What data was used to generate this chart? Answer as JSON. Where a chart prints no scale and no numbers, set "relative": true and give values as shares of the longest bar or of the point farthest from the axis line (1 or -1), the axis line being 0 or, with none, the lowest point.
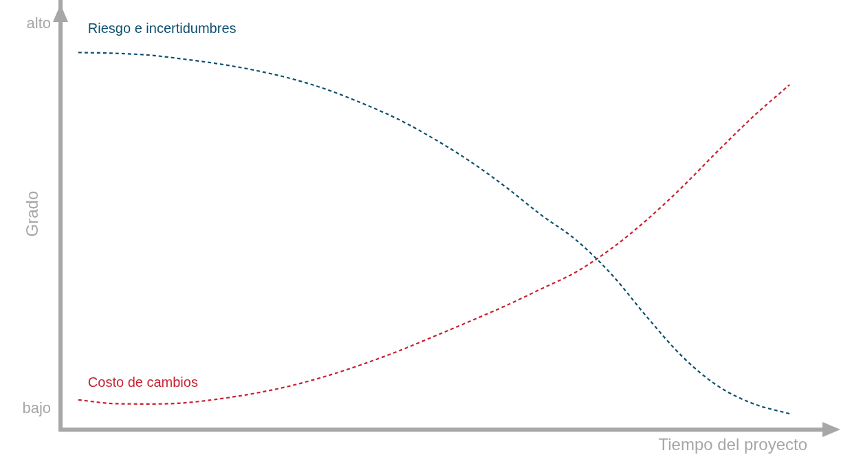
{
  "chart_data": {
    "type": "line",
    "xlabel": "Tiempo del proyecto",
    "ylabel": "Grado",
    "relative": true,
    "categories": [
      null,
      null,
      null,
      null,
      null,
      null,
      null,
      null,
      null,
      null,
      null,
      null,
      null,
      null,
      null,
      null,
      null,
      null,
      null,
      null,
      null
    ],
    "series": [
      {
        "name": "Riesgo e incertidumbres",
        "color": "#0d4f6e",
        "values": [
          1.0,
          0.998,
          0.993,
          0.982,
          0.969,
          0.952,
          0.93,
          0.901,
          0.864,
          0.822,
          0.77,
          0.711,
          0.643,
          0.568,
          0.5,
          0.408,
          0.294,
          0.188,
          0.11,
          0.063,
          0.037
        ]
      },
      {
        "name": "Costo de cambios",
        "color": "#c8202f",
        "values": [
          0.074,
          0.064,
          0.063,
          0.066,
          0.077,
          0.092,
          0.112,
          0.138,
          0.169,
          0.204,
          0.243,
          0.283,
          0.324,
          0.369,
          0.415,
          0.478,
          0.555,
          0.643,
          0.739,
          0.831,
          0.914
        ]
      }
    ],
    "annotations": [
      "alto",
      "bajo"
    ],
    "tick_labels": false,
    "grid": false,
    "legend": false,
    "marker": "none",
    "line_style": "dashed"
  }
}
